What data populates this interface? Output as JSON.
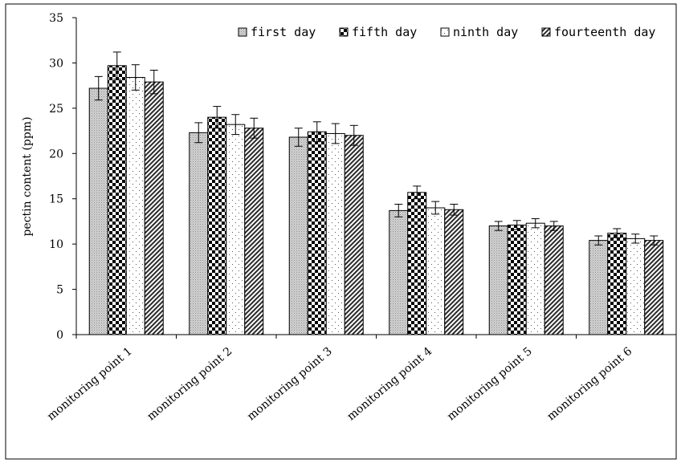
{
  "chart_data": {
    "type": "bar",
    "title": "",
    "xlabel": "",
    "ylabel": "pectin content (ppm)",
    "ylim": [
      0,
      35
    ],
    "yticks": [
      0,
      5,
      10,
      15,
      20,
      25,
      30,
      35
    ],
    "categories": [
      "monitoring point 1",
      "monitoring point 2",
      "monitoring point 3",
      "monitoring point 4",
      "monitoring point 5",
      "monitoring point 6"
    ],
    "series": [
      {
        "name": "first day",
        "pattern": "fine-dots",
        "values": [
          27.2,
          22.3,
          21.8,
          13.7,
          12.0,
          10.4
        ],
        "errors": [
          1.3,
          1.1,
          1.0,
          0.7,
          0.5,
          0.5
        ]
      },
      {
        "name": "fifth day",
        "pattern": "checker",
        "values": [
          29.7,
          24.0,
          22.4,
          15.7,
          12.1,
          11.2
        ],
        "errors": [
          1.5,
          1.2,
          1.1,
          0.7,
          0.5,
          0.5
        ]
      },
      {
        "name": "ninth day",
        "pattern": "sparse-dots",
        "values": [
          28.4,
          23.2,
          22.2,
          14.0,
          12.3,
          10.6
        ],
        "errors": [
          1.4,
          1.1,
          1.1,
          0.7,
          0.5,
          0.5
        ]
      },
      {
        "name": "fourteenth day",
        "pattern": "diagonal",
        "values": [
          27.9,
          22.8,
          22.0,
          13.8,
          12.0,
          10.4
        ],
        "errors": [
          1.3,
          1.1,
          1.1,
          0.6,
          0.5,
          0.5
        ]
      }
    ],
    "legend_position": "top-right",
    "grid": false
  }
}
